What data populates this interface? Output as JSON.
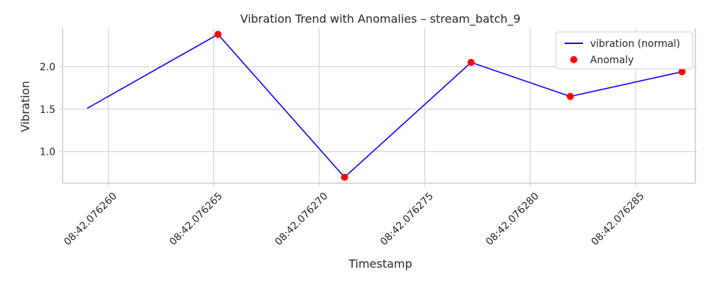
{
  "chart_data": {
    "type": "line",
    "title": "Vibration Trend with Anomalies – stream_batch_9",
    "xlabel": "Timestamp",
    "ylabel": "Vibration",
    "x_unit_note": "",
    "x": [
      "08:42.076259",
      "08:42.076265",
      "08:42.076271",
      "08:42.076277",
      "08:42.076282",
      "08:42.076287"
    ],
    "x_numeric": [
      0.076259,
      0.0762652,
      0.0762712,
      0.0762772,
      0.0762819,
      0.0762872
    ],
    "xticks": [
      0.07626,
      0.076265,
      0.07627,
      0.076275,
      0.07628,
      0.076285
    ],
    "xtick_labels": [
      "08:42.076260",
      "08:42.076265",
      "08:42.076270",
      "08:42.076275",
      "08:42.076280",
      "08:42.076285"
    ],
    "xlim": [
      0.0762579,
      0.0762879
    ],
    "ylim": [
      0.63,
      2.45
    ],
    "yticks": [
      1.0,
      1.5,
      2.0
    ],
    "ytick_labels": [
      "1.0",
      "1.5",
      "2.0"
    ],
    "series": [
      {
        "name": "vibration (normal)",
        "kind": "line",
        "color": "#0000ff",
        "values": [
          1.51,
          2.38,
          0.7,
          2.05,
          1.65,
          1.94
        ]
      },
      {
        "name": "Anomaly",
        "kind": "scatter",
        "color": "#ff0000",
        "points": [
          {
            "x": 0.0762652,
            "y": 2.38
          },
          {
            "x": 0.0762712,
            "y": 0.7
          },
          {
            "x": 0.0762772,
            "y": 2.05
          },
          {
            "x": 0.0762819,
            "y": 1.65
          },
          {
            "x": 0.0762872,
            "y": 1.94
          }
        ]
      }
    ],
    "grid": true,
    "legend_position": "top-right"
  }
}
